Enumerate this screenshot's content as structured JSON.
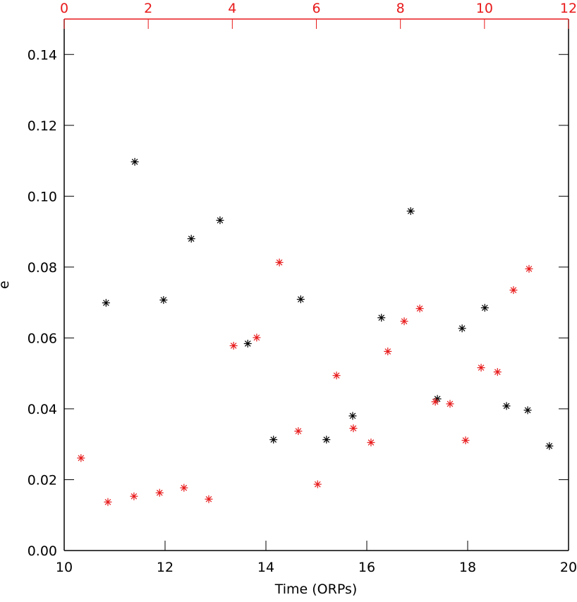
{
  "chart_data": {
    "type": "scatter",
    "xlabel": "Time (ORPs)",
    "ylabel": "e",
    "xlim": [
      10,
      20
    ],
    "xticks": [
      10,
      12,
      14,
      16,
      18,
      20
    ],
    "x2lim": [
      0,
      12
    ],
    "x2ticks": [
      0,
      2,
      4,
      6,
      8,
      10,
      12
    ],
    "x2color": "#e8191a",
    "ylim": [
      0,
      0.15
    ],
    "yticks": [
      {
        "value": 0,
        "label": "0.00"
      },
      {
        "value": 0.02,
        "label": "0.02"
      },
      {
        "value": 0.04,
        "label": "0.04"
      },
      {
        "value": 0.06,
        "label": "0.06"
      },
      {
        "value": 0.08,
        "label": "0.08"
      },
      {
        "value": 0.1,
        "label": "0.10"
      },
      {
        "value": 0.12,
        "label": "0.12"
      },
      {
        "value": 0.14,
        "label": "0.14"
      }
    ],
    "series": [
      {
        "color": "#000000",
        "xaxis": "x",
        "x": [
          10.83,
          11.4,
          11.97,
          12.52,
          13.09,
          13.64,
          14.15,
          14.69,
          15.2,
          15.72,
          16.29,
          16.87,
          17.4,
          17.89,
          18.34,
          18.77,
          19.19,
          19.62
        ],
        "values": [
          0.0699,
          0.1097,
          0.0707,
          0.088,
          0.0932,
          0.0584,
          0.0313,
          0.0709,
          0.0313,
          0.038,
          0.0657,
          0.0958,
          0.0428,
          0.0627,
          0.0685,
          0.0408,
          0.0396,
          0.0295
        ]
      },
      {
        "color": "#e8191a",
        "xaxis": "x2",
        "x": [
          0.4,
          1.04,
          1.66,
          2.27,
          2.85,
          3.44,
          4.03,
          4.58,
          5.12,
          5.57,
          6.03,
          6.48,
          6.88,
          7.3,
          7.7,
          8.09,
          8.46,
          8.83,
          9.18,
          9.55,
          9.92,
          10.31,
          10.69,
          11.06
        ],
        "values": [
          0.0261,
          0.0137,
          0.0153,
          0.0163,
          0.0177,
          0.0145,
          0.0578,
          0.0601,
          0.0813,
          0.0337,
          0.0187,
          0.0494,
          0.0345,
          0.0305,
          0.0562,
          0.0647,
          0.0683,
          0.042,
          0.0414,
          0.0311,
          0.0516,
          0.0504,
          0.0735,
          0.0795
        ]
      }
    ]
  }
}
